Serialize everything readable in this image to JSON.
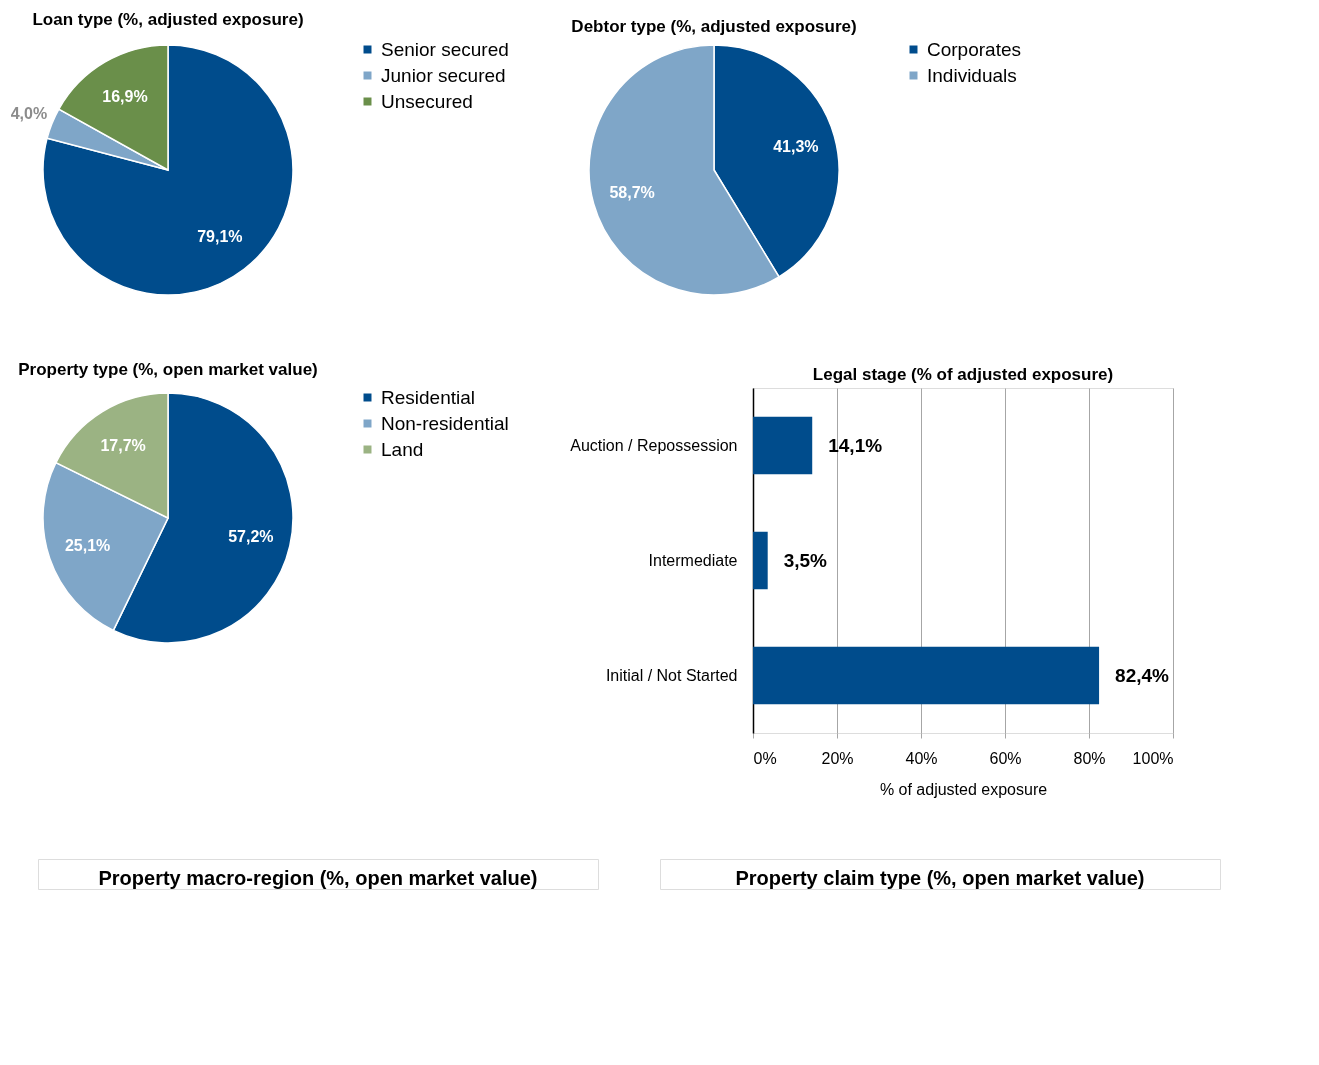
{
  "chart_data": [
    {
      "type": "pie",
      "title": "Loan type (%, adjusted exposure)",
      "categories": [
        "Senior secured",
        "Junior secured",
        "Unsecured"
      ],
      "values": [
        79.1,
        4.0,
        16.9
      ],
      "colors": [
        "#004c8c",
        "#7fa6c8",
        "#6a8f4a"
      ],
      "value_labels": [
        "79,1%",
        "4,0%",
        "16,9%"
      ],
      "legend": "right"
    },
    {
      "type": "pie",
      "title": "Debtor type (%, adjusted exposure)",
      "categories": [
        "Corporates",
        "Individuals"
      ],
      "values": [
        41.3,
        58.7
      ],
      "colors": [
        "#004c8c",
        "#7fa6c8"
      ],
      "value_labels": [
        "41,3%",
        "58,7%"
      ],
      "legend": "right"
    },
    {
      "type": "pie",
      "title": "Property type (%, open market value)",
      "categories": [
        "Residential",
        "Non-residential",
        "Land"
      ],
      "values": [
        57.2,
        25.1,
        17.7
      ],
      "colors": [
        "#004c8c",
        "#7fa6c8",
        "#9bb383"
      ],
      "value_labels": [
        "57,2%",
        "25,1%",
        "17,7%"
      ],
      "legend": "right"
    },
    {
      "type": "bar",
      "title": "Legal stage (% of adjusted exposure)",
      "orientation": "horizontal",
      "categories": [
        "Auction / Repossession",
        "Intermediate",
        "Initial / Not Started"
      ],
      "values": [
        14.1,
        3.5,
        82.4
      ],
      "color": "#004c8c",
      "value_labels": [
        "14,1%",
        "3,5%",
        "82,4%"
      ],
      "xlim": [
        0,
        100
      ],
      "xticks": [
        {
          "value": 0,
          "label": "0%"
        },
        {
          "value": 20,
          "label": "20%"
        },
        {
          "value": 40,
          "label": "40%"
        },
        {
          "value": 60,
          "label": "60%"
        },
        {
          "value": 80,
          "label": "80%"
        },
        {
          "value": 100,
          "label": "100%"
        }
      ],
      "xlabel": "% of adjusted exposure",
      "grid": "x"
    },
    {
      "type": "other",
      "title": "Property macro-region (%, open market value)"
    },
    {
      "type": "other",
      "title": "Property claim type (%, open market value)"
    }
  ]
}
